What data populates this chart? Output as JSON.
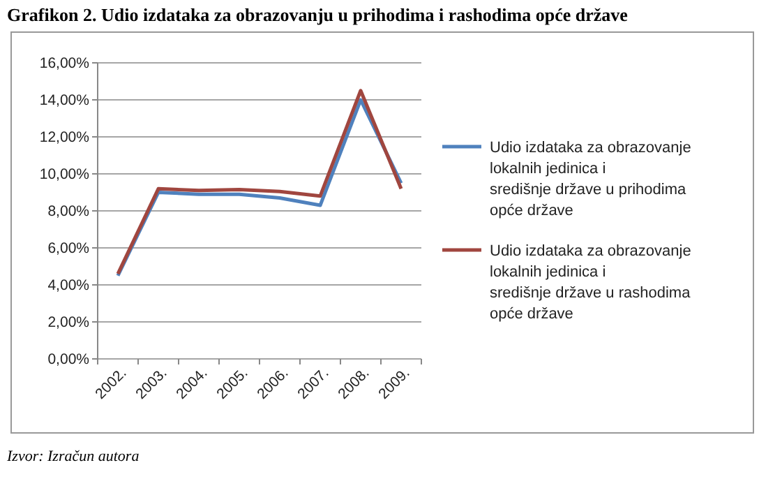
{
  "chart_data": {
    "type": "line",
    "title": "Grafikon 2. Udio izdataka za obrazovanju u prihodima i rashodima opće države",
    "categories": [
      "2002.",
      "2003.",
      "2004.",
      "2005.",
      "2006.",
      "2007.",
      "2008.",
      "2009."
    ],
    "series": [
      {
        "name": "Udio izdataka za obrazovanje lokalnih jedinica i središnje države u prihodima opće države",
        "color": "#4f81bd",
        "values": [
          4.5,
          9.0,
          8.9,
          8.9,
          8.7,
          8.3,
          14.0,
          9.5
        ]
      },
      {
        "name": "Udio izdataka za obrazovanje lokalnih jedinica i središnje države u rashodima opće države",
        "color": "#a0463f",
        "values": [
          4.6,
          9.2,
          9.1,
          9.15,
          9.05,
          8.8,
          14.5,
          9.2
        ]
      }
    ],
    "ylim": [
      0,
      16
    ],
    "yticks": [
      {
        "value": 0,
        "label": "0,00%"
      },
      {
        "value": 2,
        "label": "2,00%"
      },
      {
        "value": 4,
        "label": "4,00%"
      },
      {
        "value": 6,
        "label": "6,00%"
      },
      {
        "value": 8,
        "label": "8,00%"
      },
      {
        "value": 10,
        "label": "10,00%"
      },
      {
        "value": 12,
        "label": "12,00%"
      },
      {
        "value": 14,
        "label": "14,00%"
      },
      {
        "value": 16,
        "label": "16,00%"
      }
    ],
    "grid": "y",
    "legend": "right",
    "annotations": [
      "Izvor: Izračun autora"
    ]
  }
}
